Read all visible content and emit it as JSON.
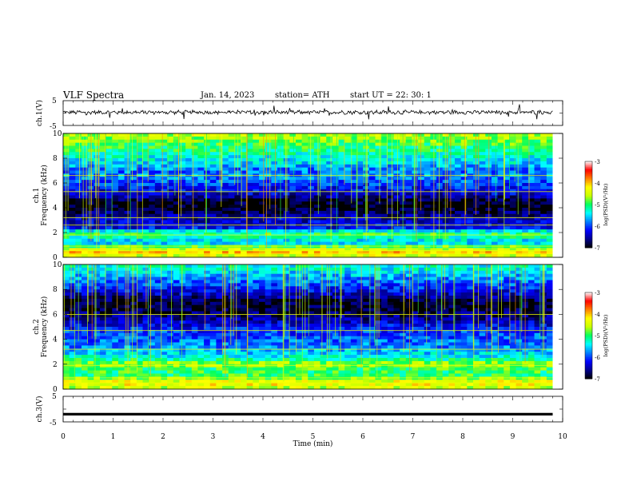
{
  "header": {
    "title": "VLF  Spectra",
    "date": "Jan. 14, 2023",
    "station": "station= ATH",
    "start_ut": "start  UT  =    22: 30: 1"
  },
  "chart_data": [
    {
      "type": "line",
      "panel": "ch1-waveform",
      "ylabel": "ch.1(V)",
      "ytick_labels": [
        "5",
        "-5"
      ],
      "ylim": [
        -5,
        5
      ],
      "x": [
        0,
        9.8
      ],
      "series": [
        {
          "values": [
            0.3,
            0.3
          ]
        }
      ],
      "note_values": "noisy trace around ~0.3 V"
    },
    {
      "type": "heatmap",
      "panel": "ch1-spectrogram",
      "ylabel": "ch.1\nFrequency  (kHz)",
      "ylabel_lines": [
        "ch.1",
        "Frequency  (kHz)"
      ],
      "ytick_labels": [
        "0",
        "2",
        "4",
        "6",
        "8",
        "10"
      ],
      "ylim": [
        0,
        10
      ],
      "xlim": [
        0,
        10
      ],
      "data_xmax": 9.8,
      "colorbar": {
        "label": "log(PSD)(V²/Hz)",
        "tick_labels": [
          "-3",
          "-4",
          "-5",
          "-6",
          "-7"
        ],
        "range": [
          -7,
          -3
        ]
      },
      "band_profile_log_psd": [
        {
          "f": 0.0,
          "v": -4.6
        },
        {
          "f": 0.4,
          "v": -4.0
        },
        {
          "f": 0.8,
          "v": -4.8
        },
        {
          "f": 1.2,
          "v": -5.6
        },
        {
          "f": 1.6,
          "v": -5.2
        },
        {
          "f": 2.0,
          "v": -5.0
        },
        {
          "f": 2.4,
          "v": -6.3
        },
        {
          "f": 3.0,
          "v": -6.4
        },
        {
          "f": 3.6,
          "v": -6.7
        },
        {
          "f": 4.0,
          "v": -7.0
        },
        {
          "f": 4.6,
          "v": -6.9
        },
        {
          "f": 5.0,
          "v": -6.4
        },
        {
          "f": 5.6,
          "v": -6.2
        },
        {
          "f": 6.0,
          "v": -6.0
        },
        {
          "f": 6.6,
          "v": -5.8
        },
        {
          "f": 7.0,
          "v": -5.9
        },
        {
          "f": 7.6,
          "v": -5.5
        },
        {
          "f": 8.0,
          "v": -5.4
        },
        {
          "f": 8.6,
          "v": -5.1
        },
        {
          "f": 9.0,
          "v": -5.0
        },
        {
          "f": 9.6,
          "v": -4.7
        },
        {
          "f": 10.0,
          "v": -4.6
        }
      ],
      "horizontal_lines_khz": [
        0.3,
        0.55,
        0.9,
        1.8,
        2.6,
        3.2,
        5.3,
        6.6
      ],
      "note": "impulsive vertical sferic streaks throughout"
    },
    {
      "type": "heatmap",
      "panel": "ch2-spectrogram",
      "ylabel": "ch.2\nFrequency  (kHz)",
      "ylabel_lines": [
        "ch.2",
        "Frequency  (kHz)"
      ],
      "ytick_labels": [
        "0",
        "2",
        "4",
        "6",
        "8",
        "10"
      ],
      "ylim": [
        0,
        10
      ],
      "xlim": [
        0,
        10
      ],
      "data_xmax": 9.8,
      "colorbar": {
        "label": "log(PSD)(V²/Hz)",
        "tick_labels": [
          "-3",
          "-4",
          "-5",
          "-6",
          "-7"
        ],
        "range": [
          -7,
          -3
        ]
      },
      "band_profile_log_psd": [
        {
          "f": 0.0,
          "v": -4.6
        },
        {
          "f": 0.5,
          "v": -4.2
        },
        {
          "f": 1.0,
          "v": -5.0
        },
        {
          "f": 1.6,
          "v": -5.0
        },
        {
          "f": 2.0,
          "v": -4.6
        },
        {
          "f": 2.5,
          "v": -5.3
        },
        {
          "f": 3.0,
          "v": -5.6
        },
        {
          "f": 3.5,
          "v": -5.8
        },
        {
          "f": 4.0,
          "v": -5.9
        },
        {
          "f": 4.5,
          "v": -6.0
        },
        {
          "f": 5.0,
          "v": -6.2
        },
        {
          "f": 5.5,
          "v": -6.5
        },
        {
          "f": 6.0,
          "v": -6.7
        },
        {
          "f": 6.5,
          "v": -6.9
        },
        {
          "f": 7.0,
          "v": -6.9
        },
        {
          "f": 7.5,
          "v": -6.5
        },
        {
          "f": 8.0,
          "v": -6.2
        },
        {
          "f": 8.5,
          "v": -5.9
        },
        {
          "f": 9.0,
          "v": -5.7
        },
        {
          "f": 9.5,
          "v": -5.4
        },
        {
          "f": 10.0,
          "v": -5.3
        }
      ],
      "horizontal_lines_khz": [
        0.5,
        0.9,
        1.9,
        3.2,
        4.7,
        6.0
      ],
      "note": "impulsive vertical sferic streaks throughout"
    },
    {
      "type": "line",
      "panel": "ch3-waveform",
      "ylabel": "ch.3(V)",
      "ytick_labels": [
        "5",
        "-5"
      ],
      "ylim": [
        -5,
        5
      ],
      "x": [
        0,
        9.8
      ],
      "series": [
        {
          "values": [
            -2,
            -2
          ]
        }
      ],
      "note_values": "flat thick trace at about -2 V"
    }
  ],
  "x_axis": {
    "label": "Time  (min)",
    "tick_labels": [
      "0",
      "1",
      "2",
      "3",
      "4",
      "5",
      "6",
      "7",
      "8",
      "9",
      "10"
    ],
    "xlim": [
      0,
      10
    ]
  },
  "colors": {
    "colormap": [
      "#000000",
      "#00008f",
      "#0000ff",
      "#0080ff",
      "#00ffff",
      "#00ff60",
      "#c8ff00",
      "#ffff00",
      "#ff8000",
      "#ff0000",
      "#ffffff"
    ],
    "axes": "#000000",
    "trace": "#000000"
  }
}
